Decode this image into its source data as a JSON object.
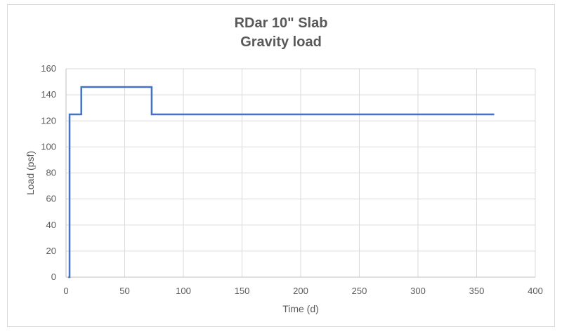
{
  "chart_data": {
    "type": "line",
    "title": [
      "RDar 10\" Slab",
      "Gravity load"
    ],
    "xlabel": "Time (d)",
    "ylabel": "Load (psf)",
    "xlim": [
      0,
      400
    ],
    "ylim": [
      0,
      160
    ],
    "xticks": [
      0,
      50,
      100,
      150,
      200,
      250,
      300,
      350,
      400
    ],
    "yticks": [
      0,
      20,
      40,
      60,
      80,
      100,
      120,
      140,
      160
    ],
    "grid": true,
    "legend": "none",
    "series": [
      {
        "color": "#4472c4",
        "points": [
          [
            2,
            0
          ],
          [
            3,
            0
          ],
          [
            3,
            125
          ],
          [
            13,
            125
          ],
          [
            13,
            146
          ],
          [
            73,
            146
          ],
          [
            73,
            125
          ],
          [
            365,
            125
          ]
        ]
      }
    ]
  }
}
